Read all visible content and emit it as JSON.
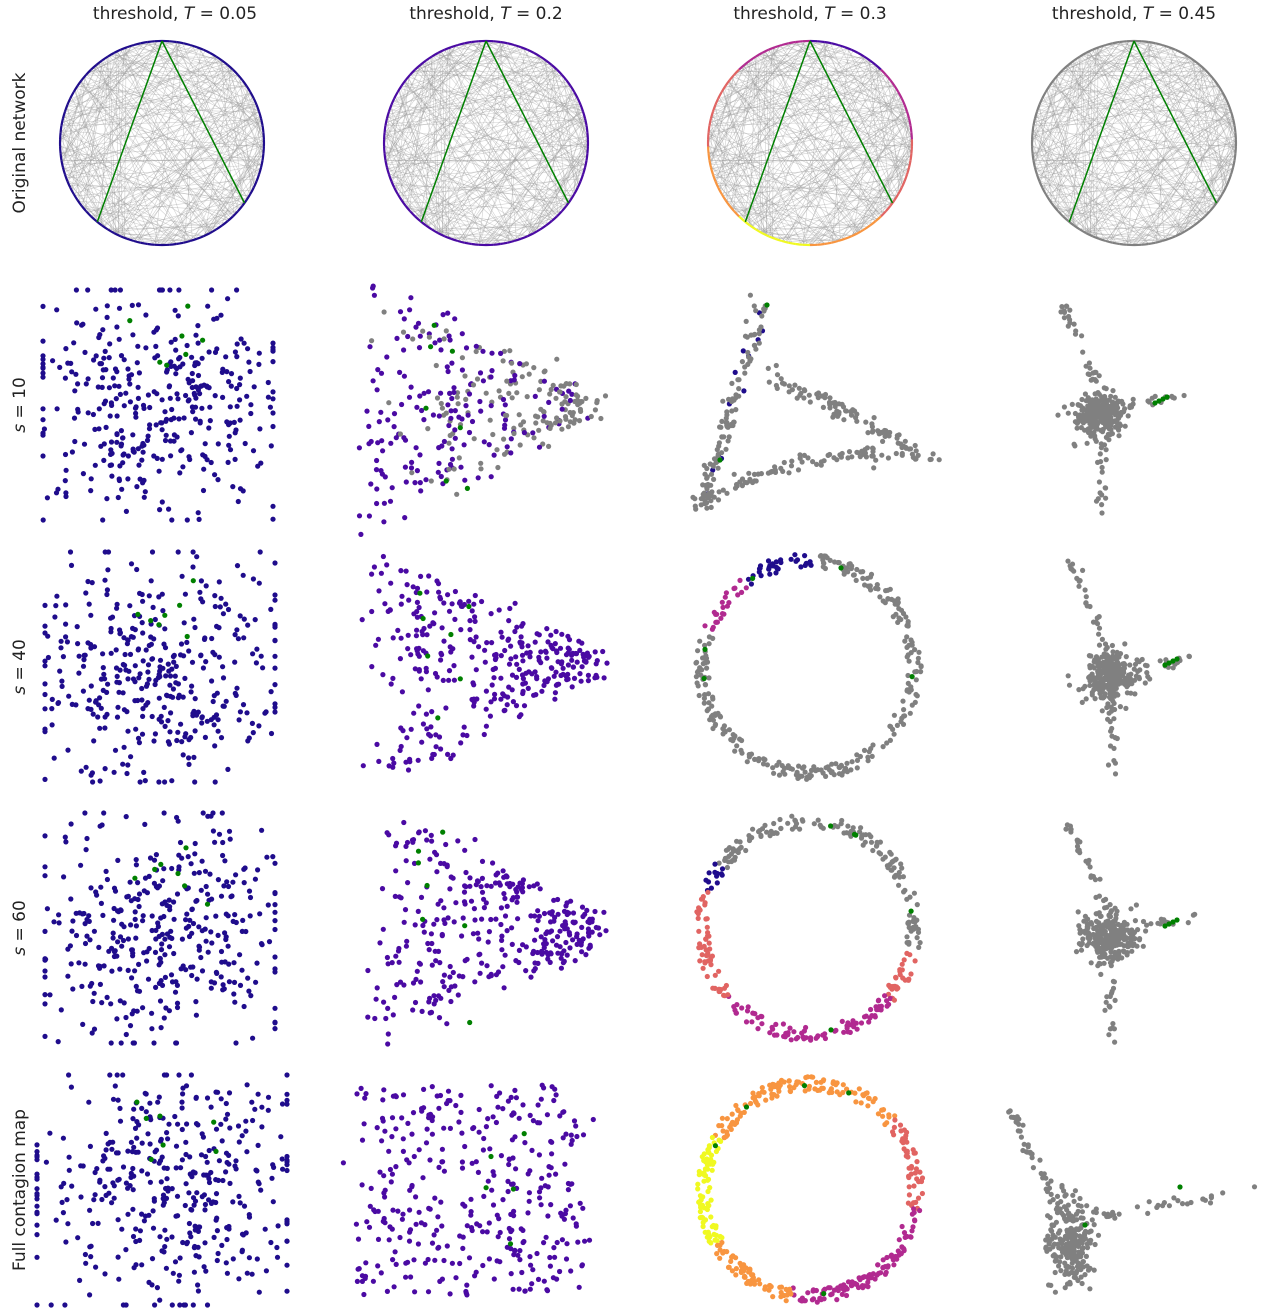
{
  "chart_data": {
    "type": "scatter",
    "description_kind": "grid of network embeddings",
    "columns": [
      {
        "prefix": "threshold, ",
        "var": "T",
        "value": " = 0.05",
        "T": 0.05
      },
      {
        "prefix": "threshold, ",
        "var": "T",
        "value": " = 0.2",
        "T": 0.2
      },
      {
        "prefix": "threshold, ",
        "var": "T",
        "value": " = 0.3",
        "T": 0.3
      },
      {
        "prefix": "threshold, ",
        "var": "T",
        "value": " = 0.45",
        "T": 0.45
      }
    ],
    "rows": [
      {
        "label_plain": "Original network",
        "kind": "ring"
      },
      {
        "label_var": "s",
        "label_rest": " = 10",
        "s": 10,
        "kind": "scatter"
      },
      {
        "label_var": "s",
        "label_rest": " = 40",
        "s": 40,
        "kind": "scatter"
      },
      {
        "label_var": "s",
        "label_rest": " = 60",
        "s": 60,
        "kind": "scatter"
      },
      {
        "label_plain": "Full contagion map",
        "kind": "scatter"
      }
    ],
    "colors": {
      "deep_indigo": "#1f0c8c",
      "violet": "#4a0aa3",
      "magenta": "#b12a90",
      "salmon": "#e16462",
      "orange": "#f89540",
      "yellow": "#f0f921",
      "gray": "#808080",
      "green": "#008000",
      "edge_gray": "#9a9a9a"
    },
    "grid": false,
    "axes_visible": false
  }
}
